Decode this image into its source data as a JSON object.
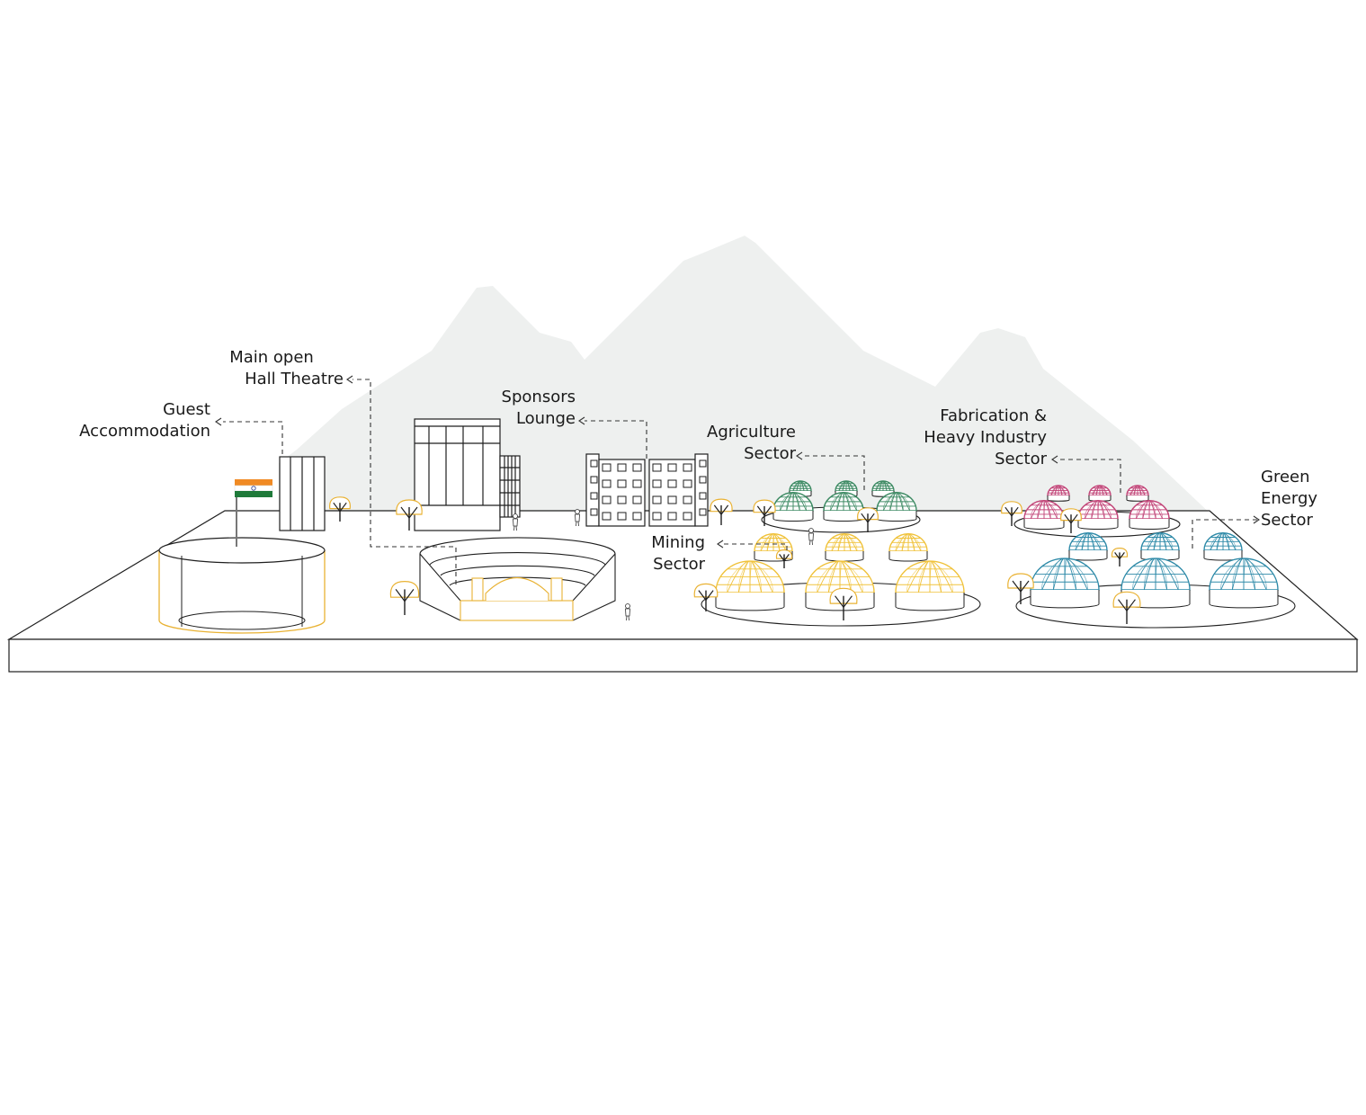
{
  "colors": {
    "mountain": "#eef0ef",
    "outline": "#1f1f1f",
    "accent_yellow": "#e9b233",
    "dome_green": "#3d8a63",
    "dome_yellow": "#f0c23a",
    "dome_pink": "#c24679",
    "dome_blue": "#2e8aa8",
    "flag_saffron": "#f08a24",
    "flag_green": "#1f7a3a",
    "flag_chakra": "#2b3a8c"
  },
  "labels": {
    "guest": {
      "line1": "Guest",
      "line2": "Accommodation"
    },
    "theatre": {
      "line1": "Main open",
      "line2": "Hall Theatre"
    },
    "sponsors": {
      "line1": "Sponsors",
      "line2": "Lounge"
    },
    "agriculture": {
      "line1": "Agriculture",
      "line2": "Sector"
    },
    "fabrication": {
      "line1": "Fabrication &",
      "line2": "Heavy Industry",
      "line3": "Sector"
    },
    "mining": {
      "line1": "Mining",
      "line2": "Sector"
    },
    "green": {
      "line1": "Green",
      "line2": "Energy",
      "line3": "Sector"
    }
  },
  "icons": {
    "flag": "indian-flag-icon",
    "tree": "tree-icon",
    "person": "person-icon",
    "dome": "geodesic-dome-icon",
    "arrow": "left-arrow-icon"
  }
}
